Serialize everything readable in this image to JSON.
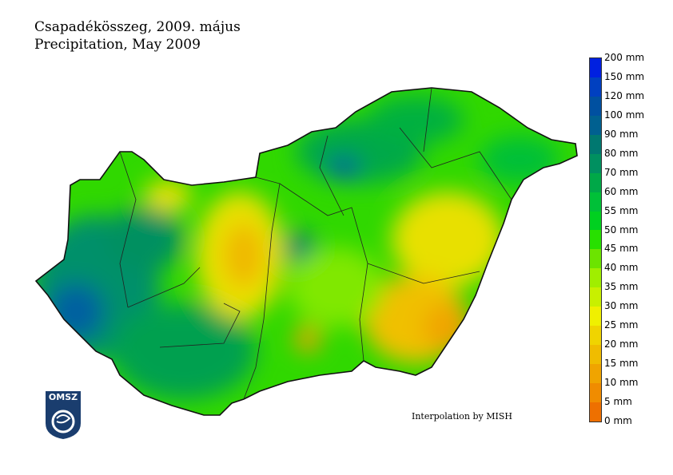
{
  "title_hu": "Csapadékösszeg, 2009. május",
  "title_en": "Precipitation, May 2009",
  "credit": "Interpolation by MISH",
  "logo_text": "OMSZ",
  "legend": {
    "labels": [
      "0 mm",
      "5 mm",
      "10 mm",
      "15 mm",
      "20 mm",
      "25 mm",
      "30 mm",
      "35 mm",
      "40 mm",
      "45 mm",
      "50 mm",
      "55 mm",
      "60 mm",
      "70 mm",
      "80 mm",
      "90 mm",
      "100 mm",
      "120 mm",
      "150 mm",
      "200 mm"
    ],
    "colors": [
      "#ee7000",
      "#f08c00",
      "#f0a400",
      "#f0bc00",
      "#f0d400",
      "#f0f000",
      "#c8f000",
      "#a0ee00",
      "#6ce400",
      "#28e000",
      "#00d020",
      "#00c038",
      "#00a848",
      "#009060",
      "#007870",
      "#006090",
      "#0050a0",
      "#0040c0",
      "#0020e0"
    ]
  }
}
